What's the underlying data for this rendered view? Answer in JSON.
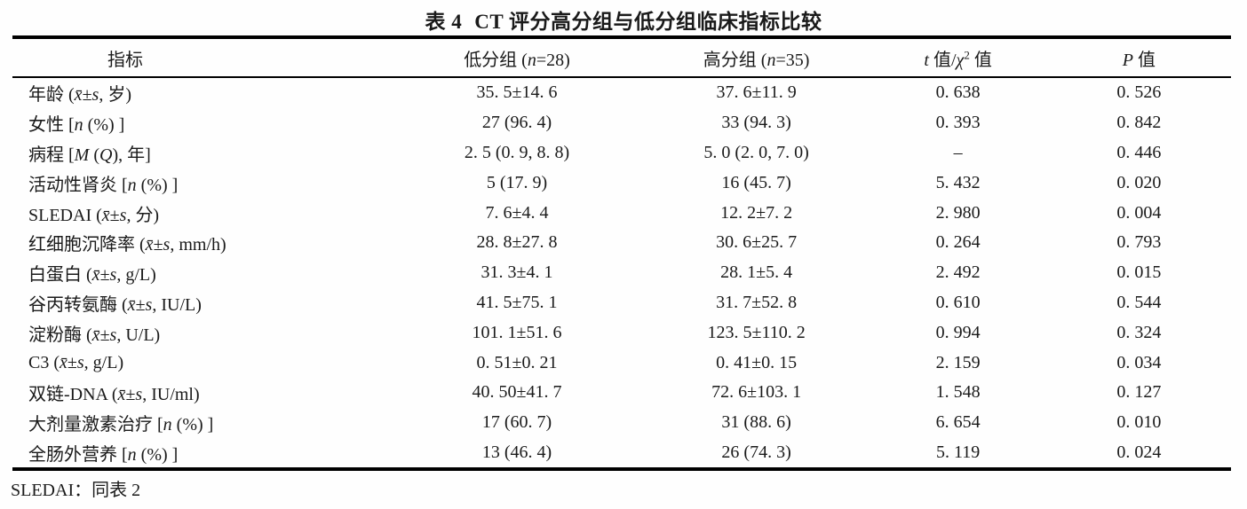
{
  "accent_colors": {
    "text": "#1a1a1a",
    "rule": "#000000",
    "background": "#fefefe"
  },
  "table": {
    "title": {
      "tag": "表 4",
      "text": "CT 评分高分组与低分组临床指标比较"
    },
    "columns": [
      "指标",
      "低分组 (<i>n</i>=28)",
      "高分组 (<i>n</i>=35)",
      "<i>t</i> 值/<i>χ</i><sup>2</sup> 值",
      "<i>P</i> 值"
    ],
    "rows": [
      [
        "年龄 (<i>x̄</i>±<i>s</i>, 岁)",
        "35. 5±14. 6",
        "37. 6±11. 9",
        "0. 638",
        "0. 526"
      ],
      [
        "女性 [<i>n</i> (%) ]",
        "27 (96. 4)",
        "33 (94. 3)",
        "0. 393",
        "0. 842"
      ],
      [
        "病程 [<i>M</i> (<i>Q</i>), 年]",
        "2. 5 (0. 9, 8. 8)",
        "5. 0 (2. 0, 7. 0)",
        "–",
        "0. 446"
      ],
      [
        "活动性肾炎 [<i>n</i> (%) ]",
        "5 (17. 9)",
        "16 (45. 7)",
        "5. 432",
        "0. 020"
      ],
      [
        "SLEDAI (<i>x̄</i>±<i>s</i>, 分)",
        "7. 6±4. 4",
        "12. 2±7. 2",
        "2. 980",
        "0. 004"
      ],
      [
        "红细胞沉降率 (<i>x̄</i>±<i>s</i>, mm/h)",
        "28. 8±27. 8",
        "30. 6±25. 7",
        "0. 264",
        "0. 793"
      ],
      [
        "白蛋白 (<i>x̄</i>±<i>s</i>, g/L)",
        "31. 3±4. 1",
        "28. 1±5. 4",
        "2. 492",
        "0. 015"
      ],
      [
        "谷丙转氨酶 (<i>x̄</i>±<i>s</i>, IU/L)",
        "41. 5±75. 1",
        "31. 7±52. 8",
        "0. 610",
        "0. 544"
      ],
      [
        "淀粉酶 (<i>x̄</i>±<i>s</i>, U/L)",
        "101. 1±51. 6",
        "123. 5±110. 2",
        "0. 994",
        "0. 324"
      ],
      [
        "C3 (<i>x̄</i>±<i>s</i>, g/L)",
        "0. 51±0. 21",
        "0. 41±0. 15",
        "2. 159",
        "0. 034"
      ],
      [
        "双链-DNA (<i>x̄</i>±<i>s</i>, IU/ml)",
        "40. 50±41. 7",
        "72. 6±103. 1",
        "1. 548",
        "0. 127"
      ],
      [
        "大剂量激素治疗 [<i>n</i> (%) ]",
        "17 (60. 7)",
        "31 (88. 6)",
        "6. 654",
        "0. 010"
      ],
      [
        "全肠外营养 [<i>n</i> (%) ]",
        "13 (46. 4)",
        "26 (74. 3)",
        "5. 119",
        "0. 024"
      ]
    ],
    "footnote": "SLEDAI：同表 2"
  },
  "chart_data": {
    "type": "table",
    "title": "表 4 CT 评分高分组与低分组临床指标比较",
    "columns": [
      "指标",
      "低分组 (n=28)",
      "高分组 (n=35)",
      "t 值/χ2 值",
      "P 值"
    ],
    "rows": [
      [
        "年龄 (x̄±s, 岁)",
        "35.5±14.6",
        "37.6±11.9",
        "0.638",
        "0.526"
      ],
      [
        "女性 [n (%)]",
        "27 (96.4)",
        "33 (94.3)",
        "0.393",
        "0.842"
      ],
      [
        "病程 [M (Q), 年]",
        "2.5 (0.9, 8.8)",
        "5.0 (2.0, 7.0)",
        "–",
        "0.446"
      ],
      [
        "活动性肾炎 [n (%)]",
        "5 (17.9)",
        "16 (45.7)",
        "5.432",
        "0.020"
      ],
      [
        "SLEDAI (x̄±s, 分)",
        "7.6±4.4",
        "12.2±7.2",
        "2.980",
        "0.004"
      ],
      [
        "红细胞沉降率 (x̄±s, mm/h)",
        "28.8±27.8",
        "30.6±25.7",
        "0.264",
        "0.793"
      ],
      [
        "白蛋白 (x̄±s, g/L)",
        "31.3±4.1",
        "28.1±5.4",
        "2.492",
        "0.015"
      ],
      [
        "谷丙转氨酶 (x̄±s, IU/L)",
        "41.5±75.1",
        "31.7±52.8",
        "0.610",
        "0.544"
      ],
      [
        "淀粉酶 (x̄±s, U/L)",
        "101.1±51.6",
        "123.5±110.2",
        "0.994",
        "0.324"
      ],
      [
        "C3 (x̄±s, g/L)",
        "0.51±0.21",
        "0.41±0.15",
        "2.159",
        "0.034"
      ],
      [
        "双链-DNA (x̄±s, IU/ml)",
        "40.50±41.7",
        "72.6±103.1",
        "1.548",
        "0.127"
      ],
      [
        "大剂量激素治疗 [n (%)]",
        "17 (60.7)",
        "31 (88.6)",
        "6.654",
        "0.010"
      ],
      [
        "全肠外营养 [n (%)]",
        "13 (46.4)",
        "26 (74.3)",
        "5.119",
        "0.024"
      ]
    ],
    "footnote": "SLEDAI：同表 2"
  }
}
